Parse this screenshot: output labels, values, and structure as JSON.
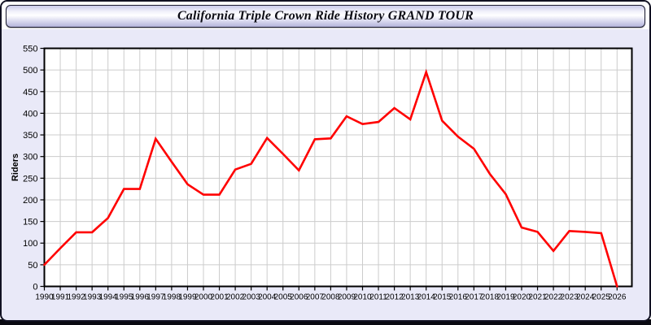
{
  "window": {
    "title": "California Triple Crown Ride History GRAND TOUR"
  },
  "colors": {
    "line": "#ff0000",
    "grid": "#cccccc",
    "axis": "#000000",
    "plot_background": "#ffffff",
    "page_background": "#e9e9f8",
    "title_text": "#0b0b14"
  },
  "chart_data": {
    "type": "line",
    "title": "California Triple Crown Ride History GRAND TOUR",
    "xlabel": "",
    "ylabel": "Riders",
    "ylim": [
      0,
      550
    ],
    "ytick_step": 50,
    "grid": true,
    "legend_position": "none",
    "x": [
      1990,
      1991,
      1992,
      1993,
      1994,
      1995,
      1996,
      1997,
      1998,
      1999,
      2000,
      2001,
      2002,
      2003,
      2004,
      2005,
      2006,
      2007,
      2008,
      2009,
      2010,
      2011,
      2012,
      2013,
      2014,
      2015,
      2016,
      2017,
      2018,
      2019,
      2020,
      2021,
      2022,
      2023,
      2024,
      2025,
      2026
    ],
    "series": [
      {
        "name": "Riders",
        "color": "#ff0000",
        "values": [
          50,
          88,
          125,
          125,
          158,
          225,
          225,
          341,
          288,
          236,
          212,
          212,
          270,
          283,
          343,
          306,
          268,
          340,
          342,
          393,
          375,
          380,
          412,
          386,
          495,
          383,
          346,
          318,
          260,
          213,
          136,
          126,
          82,
          128,
          126,
          123,
          0
        ]
      }
    ]
  }
}
